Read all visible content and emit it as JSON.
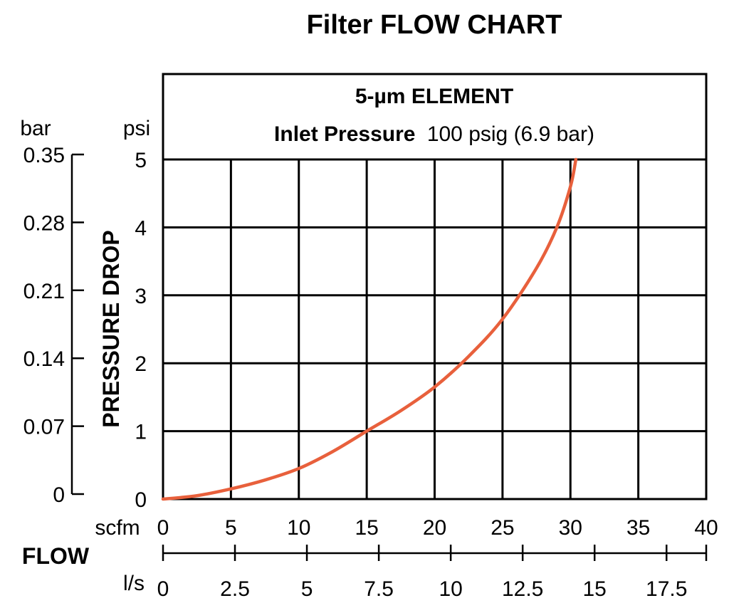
{
  "chart_data": {
    "type": "line",
    "title": "Filter FLOW CHART",
    "header": {
      "line1_bold": "5-µm ELEMENT",
      "line2_bold": "Inlet Pressure",
      "line2_normal": "100 psig (6.9 bar)"
    },
    "ylabel": "PRESSURE DROP",
    "xlabel": "FLOW",
    "y_primary": {
      "unit": "psi",
      "ticks": [
        "0",
        "1",
        "2",
        "3",
        "4",
        "5"
      ],
      "lim": [
        0,
        5
      ]
    },
    "y_secondary": {
      "unit": "bar",
      "ticks": [
        "0",
        "0.07",
        "0.14",
        "0.21",
        "0.28",
        "0.35"
      ]
    },
    "x_primary": {
      "unit": "scfm",
      "ticks": [
        "0",
        "5",
        "10",
        "15",
        "20",
        "25",
        "30",
        "35",
        "40"
      ],
      "lim": [
        0,
        40
      ]
    },
    "x_secondary": {
      "unit": "l/s",
      "ticks": [
        "0",
        "2.5",
        "5",
        "7.5",
        "10",
        "12.5",
        "15",
        "17.5"
      ]
    },
    "grid": true,
    "series": [
      {
        "color": "#e8603c",
        "x": [
          0,
          2.5,
          5,
          7.5,
          10,
          12.5,
          15,
          17.5,
          20,
          22.5,
          25,
          27.5,
          29,
          30,
          30.4
        ],
        "y": [
          0,
          0.05,
          0.15,
          0.28,
          0.45,
          0.7,
          1.0,
          1.3,
          1.65,
          2.1,
          2.65,
          3.4,
          4.0,
          4.6,
          5.0
        ]
      }
    ]
  }
}
